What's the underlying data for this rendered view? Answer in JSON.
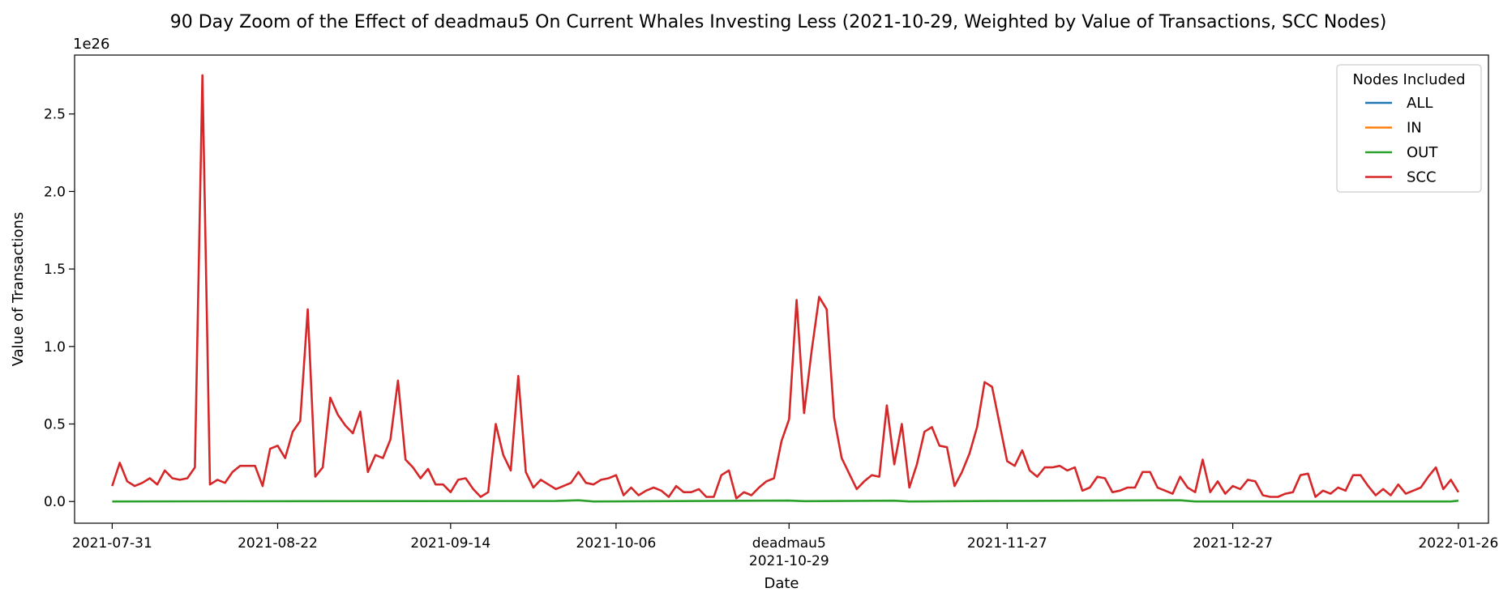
{
  "chart_data": {
    "type": "line",
    "title": "90 Day Zoom of the Effect of deadmau5 On Current Whales Investing Less (2021-10-29, Weighted by Value of Transactions, SCC Nodes)",
    "xlabel": "Date",
    "ylabel": "Value of Transactions",
    "y_exponent_label": "1e26",
    "ylim": [
      -0.14,
      2.88
    ],
    "y_ticks": [
      0.0,
      0.5,
      1.0,
      1.5,
      2.0,
      2.5
    ],
    "y_tick_labels": [
      "0.0",
      "0.5",
      "1.0",
      "1.5",
      "2.0",
      "2.5"
    ],
    "x_ticks": [
      {
        "date": "2021-07-31",
        "label": "2021-07-31"
      },
      {
        "date": "2021-08-22",
        "label": "2021-08-22"
      },
      {
        "date": "2021-09-14",
        "label": "2021-09-14"
      },
      {
        "date": "2021-10-06",
        "label": "2021-10-06"
      },
      {
        "date": "2021-10-29",
        "label": "2021-10-29",
        "annotation": "deadmau5"
      },
      {
        "date": "2021-11-27",
        "label": "2021-11-27"
      },
      {
        "date": "2021-12-27",
        "label": "2021-12-27"
      },
      {
        "date": "2022-01-26",
        "label": "2022-01-26"
      }
    ],
    "x_range": [
      "2021-07-26",
      "2022-01-30"
    ],
    "legend": {
      "title": "Nodes Included",
      "placement": "top-right",
      "entries": [
        {
          "name": "ALL",
          "color": "#1f77b4"
        },
        {
          "name": "IN",
          "color": "#ff7f0e"
        },
        {
          "name": "OUT",
          "color": "#2ca02c"
        },
        {
          "name": "SCC",
          "color": "#d62728"
        }
      ]
    },
    "grid": false,
    "series": [
      {
        "name": "SCC",
        "color": "#d62728",
        "points": [
          [
            "2021-07-31",
            0.1
          ],
          [
            "2021-08-01",
            0.25
          ],
          [
            "2021-08-02",
            0.13
          ],
          [
            "2021-08-03",
            0.1
          ],
          [
            "2021-08-04",
            0.12
          ],
          [
            "2021-08-05",
            0.15
          ],
          [
            "2021-08-06",
            0.11
          ],
          [
            "2021-08-07",
            0.2
          ],
          [
            "2021-08-08",
            0.15
          ],
          [
            "2021-08-09",
            0.14
          ],
          [
            "2021-08-10",
            0.15
          ],
          [
            "2021-08-11",
            0.22
          ],
          [
            "2021-08-12",
            2.75
          ],
          [
            "2021-08-13",
            0.11
          ],
          [
            "2021-08-14",
            0.14
          ],
          [
            "2021-08-15",
            0.12
          ],
          [
            "2021-08-16",
            0.19
          ],
          [
            "2021-08-17",
            0.23
          ],
          [
            "2021-08-18",
            0.23
          ],
          [
            "2021-08-19",
            0.23
          ],
          [
            "2021-08-20",
            0.1
          ],
          [
            "2021-08-21",
            0.34
          ],
          [
            "2021-08-22",
            0.36
          ],
          [
            "2021-08-23",
            0.28
          ],
          [
            "2021-08-24",
            0.45
          ],
          [
            "2021-08-25",
            0.52
          ],
          [
            "2021-08-26",
            1.24
          ],
          [
            "2021-08-27",
            0.16
          ],
          [
            "2021-08-28",
            0.22
          ],
          [
            "2021-08-29",
            0.67
          ],
          [
            "2021-08-30",
            0.56
          ],
          [
            "2021-08-31",
            0.49
          ],
          [
            "2021-09-01",
            0.44
          ],
          [
            "2021-09-02",
            0.58
          ],
          [
            "2021-09-03",
            0.19
          ],
          [
            "2021-09-04",
            0.3
          ],
          [
            "2021-09-05",
            0.28
          ],
          [
            "2021-09-06",
            0.4
          ],
          [
            "2021-09-07",
            0.78
          ],
          [
            "2021-09-08",
            0.27
          ],
          [
            "2021-09-09",
            0.22
          ],
          [
            "2021-09-10",
            0.15
          ],
          [
            "2021-09-11",
            0.21
          ],
          [
            "2021-09-12",
            0.11
          ],
          [
            "2021-09-13",
            0.11
          ],
          [
            "2021-09-14",
            0.06
          ],
          [
            "2021-09-15",
            0.14
          ],
          [
            "2021-09-16",
            0.15
          ],
          [
            "2021-09-17",
            0.08
          ],
          [
            "2021-09-18",
            0.03
          ],
          [
            "2021-09-19",
            0.06
          ],
          [
            "2021-09-20",
            0.5
          ],
          [
            "2021-09-21",
            0.3
          ],
          [
            "2021-09-22",
            0.2
          ],
          [
            "2021-09-23",
            0.81
          ],
          [
            "2021-09-24",
            0.19
          ],
          [
            "2021-09-25",
            0.09
          ],
          [
            "2021-09-26",
            0.14
          ],
          [
            "2021-09-27",
            0.11
          ],
          [
            "2021-09-28",
            0.08
          ],
          [
            "2021-09-29",
            0.1
          ],
          [
            "2021-09-30",
            0.12
          ],
          [
            "2021-10-01",
            0.19
          ],
          [
            "2021-10-02",
            0.12
          ],
          [
            "2021-10-03",
            0.11
          ],
          [
            "2021-10-04",
            0.14
          ],
          [
            "2021-10-05",
            0.15
          ],
          [
            "2021-10-06",
            0.17
          ],
          [
            "2021-10-07",
            0.04
          ],
          [
            "2021-10-08",
            0.09
          ],
          [
            "2021-10-09",
            0.04
          ],
          [
            "2021-10-10",
            0.07
          ],
          [
            "2021-10-11",
            0.09
          ],
          [
            "2021-10-12",
            0.07
          ],
          [
            "2021-10-13",
            0.03
          ],
          [
            "2021-10-14",
            0.1
          ],
          [
            "2021-10-15",
            0.06
          ],
          [
            "2021-10-16",
            0.06
          ],
          [
            "2021-10-17",
            0.08
          ],
          [
            "2021-10-18",
            0.03
          ],
          [
            "2021-10-19",
            0.03
          ],
          [
            "2021-10-20",
            0.17
          ],
          [
            "2021-10-21",
            0.2
          ],
          [
            "2021-10-22",
            0.02
          ],
          [
            "2021-10-23",
            0.06
          ],
          [
            "2021-10-24",
            0.04
          ],
          [
            "2021-10-25",
            0.09
          ],
          [
            "2021-10-26",
            0.13
          ],
          [
            "2021-10-27",
            0.15
          ],
          [
            "2021-10-28",
            0.39
          ],
          [
            "2021-10-29",
            0.53
          ],
          [
            "2021-10-30",
            1.3
          ],
          [
            "2021-10-31",
            0.57
          ],
          [
            "2021-11-01",
            0.97
          ],
          [
            "2021-11-02",
            1.32
          ],
          [
            "2021-11-03",
            1.24
          ],
          [
            "2021-11-04",
            0.54
          ],
          [
            "2021-11-05",
            0.28
          ],
          [
            "2021-11-06",
            0.18
          ],
          [
            "2021-11-07",
            0.08
          ],
          [
            "2021-11-08",
            0.13
          ],
          [
            "2021-11-09",
            0.17
          ],
          [
            "2021-11-10",
            0.16
          ],
          [
            "2021-11-11",
            0.62
          ],
          [
            "2021-11-12",
            0.24
          ],
          [
            "2021-11-13",
            0.5
          ],
          [
            "2021-11-14",
            0.09
          ],
          [
            "2021-11-15",
            0.24
          ],
          [
            "2021-11-16",
            0.45
          ],
          [
            "2021-11-17",
            0.48
          ],
          [
            "2021-11-18",
            0.36
          ],
          [
            "2021-11-19",
            0.35
          ],
          [
            "2021-11-20",
            0.1
          ],
          [
            "2021-11-21",
            0.19
          ],
          [
            "2021-11-22",
            0.31
          ],
          [
            "2021-11-23",
            0.48
          ],
          [
            "2021-11-24",
            0.77
          ],
          [
            "2021-11-25",
            0.74
          ],
          [
            "2021-11-26",
            0.5
          ],
          [
            "2021-11-27",
            0.26
          ],
          [
            "2021-11-28",
            0.23
          ],
          [
            "2021-11-29",
            0.33
          ],
          [
            "2021-11-30",
            0.2
          ],
          [
            "2021-12-01",
            0.16
          ],
          [
            "2021-12-02",
            0.22
          ],
          [
            "2021-12-03",
            0.22
          ],
          [
            "2021-12-04",
            0.23
          ],
          [
            "2021-12-05",
            0.2
          ],
          [
            "2021-12-06",
            0.22
          ],
          [
            "2021-12-07",
            0.07
          ],
          [
            "2021-12-08",
            0.09
          ],
          [
            "2021-12-09",
            0.16
          ],
          [
            "2021-12-10",
            0.15
          ],
          [
            "2021-12-11",
            0.06
          ],
          [
            "2021-12-12",
            0.07
          ],
          [
            "2021-12-13",
            0.09
          ],
          [
            "2021-12-14",
            0.09
          ],
          [
            "2021-12-15",
            0.19
          ],
          [
            "2021-12-16",
            0.19
          ],
          [
            "2021-12-17",
            0.09
          ],
          [
            "2021-12-18",
            0.07
          ],
          [
            "2021-12-19",
            0.05
          ],
          [
            "2021-12-20",
            0.16
          ],
          [
            "2021-12-21",
            0.09
          ],
          [
            "2021-12-22",
            0.06
          ],
          [
            "2021-12-23",
            0.27
          ],
          [
            "2021-12-24",
            0.06
          ],
          [
            "2021-12-25",
            0.13
          ],
          [
            "2021-12-26",
            0.05
          ],
          [
            "2021-12-27",
            0.1
          ],
          [
            "2021-12-28",
            0.08
          ],
          [
            "2021-12-29",
            0.14
          ],
          [
            "2021-12-30",
            0.13
          ],
          [
            "2021-12-31",
            0.04
          ],
          [
            "2022-01-01",
            0.03
          ],
          [
            "2022-01-02",
            0.03
          ],
          [
            "2022-01-03",
            0.05
          ],
          [
            "2022-01-04",
            0.06
          ],
          [
            "2022-01-05",
            0.17
          ],
          [
            "2022-01-06",
            0.18
          ],
          [
            "2022-01-07",
            0.03
          ],
          [
            "2022-01-08",
            0.07
          ],
          [
            "2022-01-09",
            0.05
          ],
          [
            "2022-01-10",
            0.09
          ],
          [
            "2022-01-11",
            0.07
          ],
          [
            "2022-01-12",
            0.17
          ],
          [
            "2022-01-13",
            0.17
          ],
          [
            "2022-01-14",
            0.1
          ],
          [
            "2022-01-15",
            0.04
          ],
          [
            "2022-01-16",
            0.08
          ],
          [
            "2022-01-17",
            0.04
          ],
          [
            "2022-01-18",
            0.11
          ],
          [
            "2022-01-19",
            0.05
          ],
          [
            "2022-01-20",
            0.07
          ],
          [
            "2022-01-21",
            0.09
          ],
          [
            "2022-01-22",
            0.16
          ],
          [
            "2022-01-23",
            0.22
          ],
          [
            "2022-01-24",
            0.08
          ],
          [
            "2022-01-25",
            0.14
          ],
          [
            "2022-01-26",
            0.06
          ]
        ]
      },
      {
        "name": "OUT",
        "color": "#2ca02c",
        "points": [
          [
            "2021-07-31",
            0.0
          ],
          [
            "2021-08-26",
            0.002
          ],
          [
            "2021-09-28",
            0.003
          ],
          [
            "2021-10-01",
            0.008
          ],
          [
            "2021-10-03",
            0.0
          ],
          [
            "2021-10-29",
            0.006
          ],
          [
            "2021-10-31",
            0.002
          ],
          [
            "2021-11-12",
            0.005
          ],
          [
            "2021-11-14",
            0.0
          ],
          [
            "2021-11-25",
            0.003
          ],
          [
            "2021-12-20",
            0.008
          ],
          [
            "2021-12-22",
            0.0
          ],
          [
            "2022-01-25",
            0.0
          ],
          [
            "2022-01-26",
            0.005
          ]
        ]
      }
    ]
  }
}
